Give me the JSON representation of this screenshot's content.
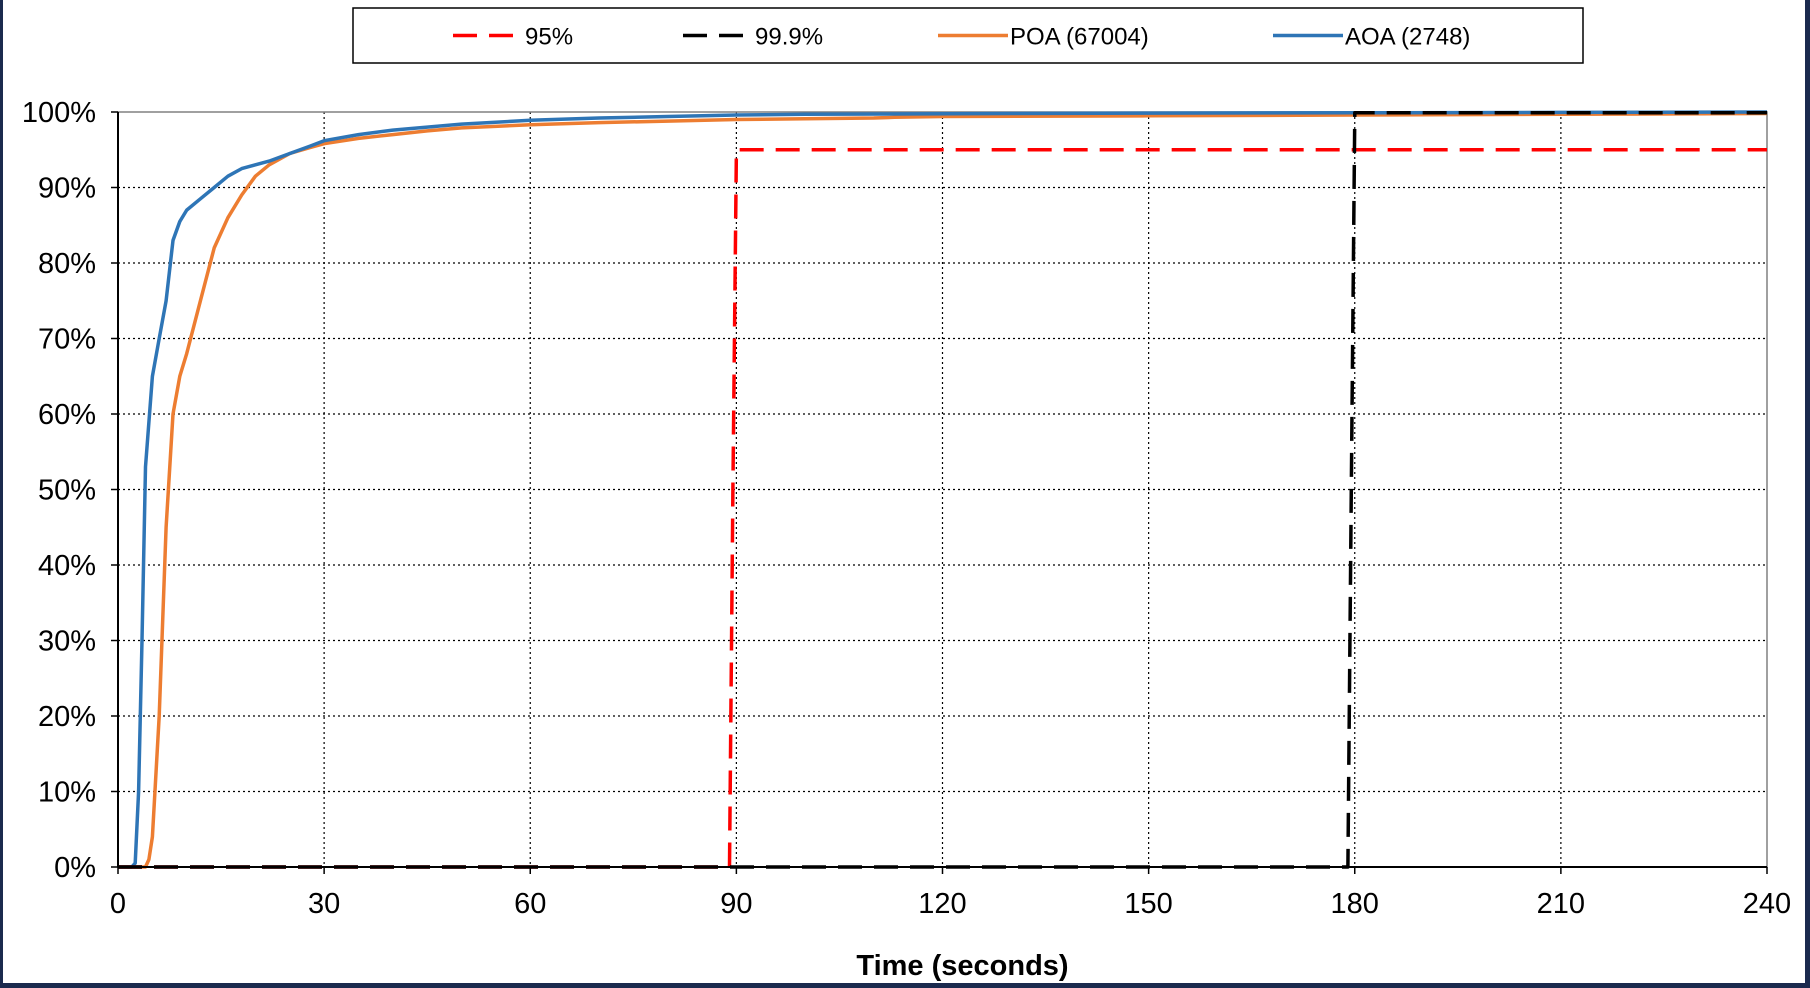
{
  "chart_data": {
    "type": "line",
    "title": "",
    "xlabel": "Time (seconds)",
    "ylabel": "",
    "xlim": [
      0,
      240
    ],
    "ylim": [
      0,
      100
    ],
    "x_ticks": [
      0,
      30,
      60,
      90,
      120,
      150,
      180,
      210,
      240
    ],
    "y_ticks": [
      0,
      10,
      20,
      30,
      40,
      50,
      60,
      70,
      80,
      90,
      100
    ],
    "y_tick_suffix": "%",
    "grid": "dotted",
    "legend": "top",
    "series": [
      {
        "name": "95%",
        "color": "#ff0000",
        "style": "dashed",
        "x": [
          0,
          89,
          89.5,
          90,
          240
        ],
        "y": [
          0,
          0,
          50,
          95,
          95
        ]
      },
      {
        "name": "99.9%",
        "color": "#000000",
        "style": "dashed",
        "x": [
          0,
          179,
          179.5,
          180,
          240
        ],
        "y": [
          0,
          0,
          50,
          99.9,
          99.9
        ]
      },
      {
        "name": "POA (67004)",
        "color": "#ed7d31",
        "style": "solid",
        "x": [
          0,
          4,
          4.5,
          5,
          6,
          7,
          8,
          9,
          10,
          12,
          14,
          16,
          18,
          20,
          22,
          25,
          28,
          30,
          35,
          40,
          45,
          50,
          60,
          70,
          80,
          90,
          100,
          110,
          113,
          120,
          150,
          180,
          210,
          240
        ],
        "y": [
          0,
          0,
          1,
          4,
          20,
          45,
          60,
          65,
          68,
          75,
          82,
          86,
          89,
          91.5,
          93,
          94.5,
          95.3,
          95.8,
          96.5,
          97,
          97.5,
          97.9,
          98.3,
          98.6,
          98.8,
          99,
          99.1,
          99.2,
          99.3,
          99.4,
          99.5,
          99.6,
          99.7,
          99.8
        ]
      },
      {
        "name": "AOA (2748)",
        "color": "#2e75b6",
        "style": "solid",
        "x": [
          0,
          2,
          2.5,
          3,
          3.5,
          4,
          5,
          6,
          7,
          8,
          9,
          10,
          12,
          14,
          16,
          18,
          20,
          22,
          25,
          28,
          30,
          35,
          40,
          45,
          50,
          60,
          70,
          80,
          90,
          100,
          130,
          150,
          180,
          210,
          240
        ],
        "y": [
          0,
          0,
          0.5,
          10,
          30,
          53,
          65,
          70,
          75,
          83,
          85.5,
          87,
          88.5,
          90,
          91.5,
          92.5,
          93,
          93.5,
          94.5,
          95.5,
          96.2,
          97,
          97.6,
          98,
          98.4,
          98.9,
          99.2,
          99.4,
          99.6,
          99.7,
          99.8,
          99.85,
          99.9,
          99.95,
          100
        ]
      }
    ]
  }
}
